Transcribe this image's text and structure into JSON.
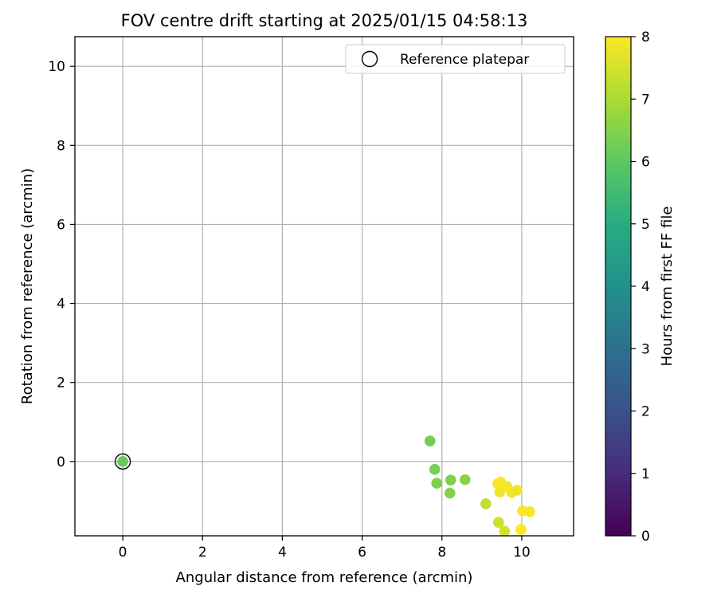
{
  "chart_data": {
    "type": "scatter",
    "title": "FOV centre drift starting at 2025/01/15 04:58:13",
    "xlabel": "Angular distance from reference (arcmin)",
    "ylabel": "Rotation from reference (arcmin)",
    "xlim": [
      -1.2,
      11.3
    ],
    "ylim": [
      -1.88,
      10.75
    ],
    "xticks": [
      0,
      2,
      4,
      6,
      8,
      10
    ],
    "yticks": [
      0,
      2,
      4,
      6,
      8,
      10
    ],
    "grid": true,
    "legend": {
      "placement": "top-right",
      "entries": [
        "Reference platepar"
      ]
    },
    "reference_point": {
      "x": 0,
      "y": 0
    },
    "points": [
      {
        "x": 0.0,
        "y": 0.0,
        "hours": 6.1
      },
      {
        "x": 7.7,
        "y": 0.52,
        "hours": 6.3
      },
      {
        "x": 7.82,
        "y": -0.2,
        "hours": 6.35
      },
      {
        "x": 7.87,
        "y": -0.55,
        "hours": 6.4
      },
      {
        "x": 8.22,
        "y": -0.47,
        "hours": 6.45
      },
      {
        "x": 8.2,
        "y": -0.8,
        "hours": 6.5
      },
      {
        "x": 8.58,
        "y": -0.46,
        "hours": 6.55
      },
      {
        "x": 9.1,
        "y": -1.07,
        "hours": 7.3
      },
      {
        "x": 9.4,
        "y": -0.56,
        "hours": 7.9
      },
      {
        "x": 9.47,
        "y": -0.52,
        "hours": 7.95
      },
      {
        "x": 9.45,
        "y": -0.77,
        "hours": 7.85
      },
      {
        "x": 9.63,
        "y": -0.63,
        "hours": 7.9
      },
      {
        "x": 9.75,
        "y": -0.78,
        "hours": 7.85
      },
      {
        "x": 9.88,
        "y": -0.73,
        "hours": 7.8
      },
      {
        "x": 10.02,
        "y": -1.25,
        "hours": 7.95
      },
      {
        "x": 10.2,
        "y": -1.27,
        "hours": 7.95
      },
      {
        "x": 9.42,
        "y": -1.54,
        "hours": 7.4
      },
      {
        "x": 9.57,
        "y": -1.76,
        "hours": 7.5
      },
      {
        "x": 9.98,
        "y": -1.72,
        "hours": 8.0
      }
    ],
    "colorbar": {
      "label": "Hours from first FF file",
      "range": [
        0,
        8
      ],
      "ticks": [
        0,
        1,
        2,
        3,
        4,
        5,
        6,
        7,
        8
      ],
      "colormap": "viridis"
    }
  }
}
